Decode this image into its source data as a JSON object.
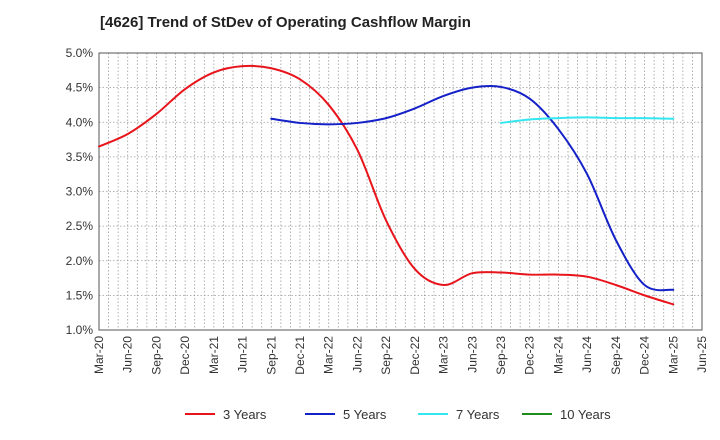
{
  "chart_data": {
    "type": "line",
    "title": "[4626]  Trend of StDev of Operating Cashflow Margin",
    "xlabel": "",
    "ylabel": "",
    "x_ticks": [
      "Mar-20",
      "Jun-20",
      "Sep-20",
      "Dec-20",
      "Mar-21",
      "Jun-21",
      "Sep-21",
      "Dec-21",
      "Mar-22",
      "Jun-22",
      "Sep-22",
      "Dec-22",
      "Mar-23",
      "Jun-23",
      "Sep-23",
      "Dec-23",
      "Mar-24",
      "Jun-24",
      "Sep-24",
      "Dec-24",
      "Mar-25",
      "Jun-25"
    ],
    "y_ticks": [
      "1.0%",
      "1.5%",
      "2.0%",
      "2.5%",
      "3.0%",
      "3.5%",
      "4.0%",
      "4.5%",
      "5.0%"
    ],
    "ylim": [
      1.0,
      5.0
    ],
    "y_unit": "%",
    "grid": true,
    "legend_position": "bottom",
    "series": [
      {
        "name": "3 Years",
        "color": "#e8141b",
        "x": [
          "Mar-20",
          "Jun-20",
          "Sep-20",
          "Dec-20",
          "Mar-21",
          "Jun-21",
          "Sep-21",
          "Dec-21",
          "Mar-22",
          "Jun-22",
          "Sep-22",
          "Dec-22",
          "Mar-23",
          "Jun-23",
          "Sep-23",
          "Dec-23",
          "Mar-24",
          "Jun-24",
          "Sep-24",
          "Dec-24",
          "Mar-25"
        ],
        "values": [
          3.65,
          3.83,
          4.12,
          4.48,
          4.72,
          4.81,
          4.78,
          4.62,
          4.25,
          3.6,
          2.58,
          1.88,
          1.65,
          1.82,
          1.83,
          1.8,
          1.8,
          1.77,
          1.65,
          1.5,
          1.37
        ]
      },
      {
        "name": "5 Years",
        "color": "#1420c8",
        "x": [
          "Sep-21",
          "Dec-21",
          "Mar-22",
          "Jun-22",
          "Sep-22",
          "Dec-22",
          "Mar-23",
          "Jun-23",
          "Sep-23",
          "Dec-23",
          "Mar-24",
          "Jun-24",
          "Sep-24",
          "Dec-24",
          "Mar-25"
        ],
        "values": [
          4.05,
          3.99,
          3.97,
          3.99,
          4.06,
          4.2,
          4.38,
          4.5,
          4.51,
          4.34,
          3.9,
          3.25,
          2.3,
          1.65,
          1.58
        ]
      },
      {
        "name": "7 Years",
        "color": "#33e6f0",
        "x": [
          "Sep-23",
          "Dec-23",
          "Mar-24",
          "Jun-24",
          "Sep-24",
          "Dec-24",
          "Mar-25"
        ],
        "values": [
          3.99,
          4.04,
          4.06,
          4.07,
          4.06,
          4.06,
          4.05
        ]
      },
      {
        "name": "10 Years",
        "color": "#1e8c1e",
        "x": [],
        "values": []
      }
    ]
  }
}
